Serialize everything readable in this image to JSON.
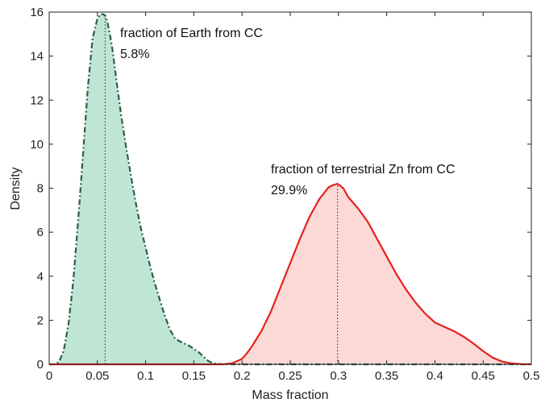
{
  "chart_data": {
    "type": "area",
    "title": "",
    "xlabel": "Mass fraction",
    "ylabel": "Density",
    "xlim": [
      0,
      0.5
    ],
    "ylim": [
      0,
      16
    ],
    "xticks": [
      0,
      0.05,
      0.1,
      0.15,
      0.2,
      0.25,
      0.3,
      0.35,
      0.4,
      0.45,
      0.5
    ],
    "xtick_labels": [
      "0",
      "0.05",
      "0.1",
      "0.15",
      "0.2",
      "0.25",
      "0.3",
      "0.35",
      "0.4",
      "0.45",
      "0.5"
    ],
    "yticks": [
      0,
      2,
      4,
      6,
      8,
      10,
      12,
      14,
      16
    ],
    "ytick_labels": [
      "0",
      "2",
      "4",
      "6",
      "8",
      "10",
      "12",
      "14",
      "16"
    ],
    "grid": false,
    "series": [
      {
        "line_color": "#2e5e46",
        "fill_color": "#bfe6d4",
        "line_style": "dash-dot",
        "peak_x": 0.058,
        "x": [
          0.0,
          0.005,
          0.01,
          0.015,
          0.02,
          0.025,
          0.03,
          0.035,
          0.04,
          0.045,
          0.05,
          0.053,
          0.056,
          0.058,
          0.06,
          0.063,
          0.066,
          0.07,
          0.075,
          0.08,
          0.085,
          0.09,
          0.095,
          0.1,
          0.105,
          0.11,
          0.115,
          0.12,
          0.125,
          0.13,
          0.135,
          0.14,
          0.145,
          0.15,
          0.155,
          0.16,
          0.165,
          0.17,
          0.175,
          0.18,
          0.19,
          0.2,
          0.25,
          0.3,
          0.35,
          0.4,
          0.45,
          0.5
        ],
        "y": [
          0,
          0,
          0.1,
          0.6,
          1.8,
          3.8,
          6.5,
          9.5,
          12.5,
          14.8,
          15.7,
          15.9,
          15.9,
          15.85,
          15.6,
          15.0,
          14.2,
          12.8,
          11.2,
          9.8,
          8.5,
          7.3,
          6.2,
          5.3,
          4.4,
          3.6,
          2.9,
          2.2,
          1.6,
          1.2,
          1.05,
          0.95,
          0.85,
          0.7,
          0.55,
          0.35,
          0.15,
          0.05,
          0.02,
          0,
          0,
          0,
          0,
          0,
          0,
          0,
          0,
          0
        ]
      },
      {
        "line_color": "#e4231c",
        "fill_color": "#fcd9d7",
        "line_style": "solid",
        "peak_x": 0.299,
        "x": [
          0.0,
          0.05,
          0.1,
          0.15,
          0.18,
          0.19,
          0.2,
          0.205,
          0.21,
          0.22,
          0.23,
          0.24,
          0.25,
          0.26,
          0.27,
          0.28,
          0.29,
          0.295,
          0.299,
          0.305,
          0.31,
          0.32,
          0.33,
          0.34,
          0.35,
          0.36,
          0.37,
          0.38,
          0.39,
          0.4,
          0.41,
          0.42,
          0.43,
          0.44,
          0.45,
          0.46,
          0.47,
          0.48,
          0.49,
          0.5
        ],
        "y": [
          0,
          0,
          0,
          0,
          0,
          0.05,
          0.25,
          0.5,
          0.8,
          1.5,
          2.4,
          3.5,
          4.6,
          5.7,
          6.7,
          7.5,
          8.05,
          8.15,
          8.2,
          8.0,
          7.6,
          7.1,
          6.5,
          5.7,
          4.9,
          4.1,
          3.4,
          2.8,
          2.3,
          1.9,
          1.7,
          1.5,
          1.25,
          0.95,
          0.6,
          0.3,
          0.12,
          0.04,
          0.01,
          0
        ]
      }
    ],
    "annotations": [
      {
        "line1": "fraction of Earth from CC",
        "line2": "5.8%"
      },
      {
        "line1": "fraction of terrestrial Zn from CC",
        "line2": "29.9%"
      }
    ]
  }
}
